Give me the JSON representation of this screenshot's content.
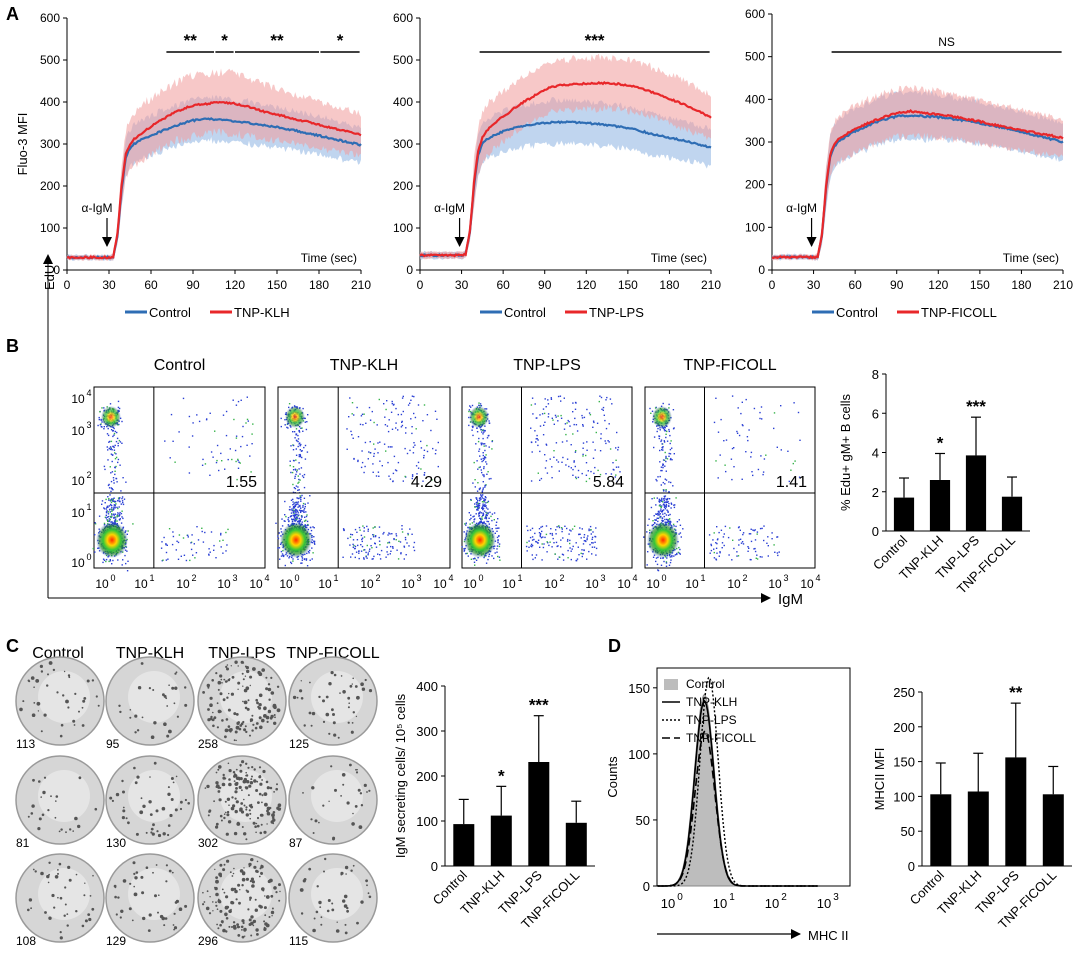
{
  "panel_labels": {
    "A": "A",
    "B": "B",
    "C": "C",
    "D": "D"
  },
  "colors": {
    "control": "#2e6db4",
    "treated": "#e8272a",
    "control_band": "#8db3e2",
    "treated_band": "#f09a9a",
    "bar": "#000000",
    "hist_fill": "#bdbdbd"
  },
  "chart_data": [
    {
      "id": "A1",
      "type": "line",
      "ylabel": "Fluo-3 MFI",
      "xlabel": "Time (sec)",
      "x_ticks": [
        "0",
        "30",
        "60",
        "90",
        "120",
        "150",
        "180",
        "210"
      ],
      "y_ticks": [
        "0",
        "100",
        "200",
        "300",
        "400",
        "500",
        "600"
      ],
      "xlim": [
        0,
        210
      ],
      "ylim": [
        0,
        600
      ],
      "arrow_label": "α-IgM",
      "arrow_x": 30,
      "series": [
        {
          "name": "Control",
          "t": [
            0,
            20,
            30,
            33,
            36,
            39,
            42,
            45,
            48,
            52,
            56,
            60,
            70,
            80,
            90,
            100,
            110,
            120,
            130,
            140,
            150,
            160,
            170,
            180,
            190,
            200,
            210
          ],
          "y": [
            30,
            30,
            30,
            30,
            80,
            190,
            268,
            290,
            300,
            308,
            315,
            320,
            334,
            346,
            356,
            360,
            358,
            354,
            350,
            345,
            340,
            334,
            327,
            320,
            312,
            305,
            298
          ],
          "sd": [
            6,
            6,
            6,
            8,
            20,
            40,
            45,
            45,
            45,
            46,
            47,
            48,
            48,
            48,
            50,
            52,
            52,
            51,
            50,
            48,
            48,
            47,
            46,
            45,
            44,
            43,
            42
          ]
        },
        {
          "name": "TNP-KLH",
          "t": [
            0,
            20,
            30,
            33,
            36,
            39,
            42,
            45,
            48,
            52,
            56,
            60,
            70,
            80,
            90,
            100,
            110,
            120,
            130,
            140,
            150,
            160,
            170,
            180,
            190,
            200,
            210
          ],
          "y": [
            30,
            30,
            30,
            30,
            85,
            200,
            275,
            300,
            312,
            322,
            332,
            342,
            362,
            380,
            392,
            396,
            400,
            396,
            388,
            378,
            370,
            362,
            354,
            346,
            338,
            330,
            322
          ],
          "sd": [
            6,
            6,
            6,
            8,
            20,
            50,
            55,
            60,
            62,
            64,
            66,
            68,
            68,
            70,
            72,
            72,
            72,
            70,
            68,
            65,
            62,
            60,
            58,
            56,
            54,
            52,
            50
          ]
        }
      ],
      "significance": [
        {
          "label": "**",
          "x0": 71,
          "x1": 105
        },
        {
          "label": "*",
          "x0": 106,
          "x1": 119
        },
        {
          "label": "**",
          "x0": 120,
          "x1": 180
        },
        {
          "label": "*",
          "x0": 181,
          "x1": 209
        }
      ]
    },
    {
      "id": "A2",
      "type": "line",
      "xlabel": "Time (sec)",
      "x_ticks": [
        "0",
        "30",
        "60",
        "90",
        "120",
        "150",
        "180",
        "210"
      ],
      "y_ticks": [
        "0",
        "100",
        "200",
        "300",
        "400",
        "500",
        "600"
      ],
      "xlim": [
        0,
        210
      ],
      "ylim": [
        0,
        600
      ],
      "arrow_label": "α-IgM",
      "arrow_x": 30,
      "series": [
        {
          "name": "Control",
          "t": [
            0,
            20,
            30,
            33,
            36,
            39,
            42,
            45,
            48,
            52,
            56,
            60,
            70,
            80,
            90,
            100,
            110,
            120,
            130,
            140,
            150,
            160,
            170,
            180,
            190,
            200,
            210
          ],
          "y": [
            35,
            35,
            35,
            38,
            90,
            200,
            275,
            300,
            310,
            318,
            324,
            330,
            340,
            346,
            350,
            352,
            352,
            350,
            347,
            343,
            338,
            330,
            322,
            315,
            308,
            300,
            292
          ],
          "sd": [
            8,
            8,
            8,
            8,
            20,
            45,
            48,
            48,
            48,
            48,
            48,
            50,
            50,
            50,
            52,
            52,
            52,
            52,
            50,
            50,
            50,
            50,
            48,
            48,
            46,
            45,
            45
          ]
        },
        {
          "name": "TNP-LPS",
          "t": [
            0,
            20,
            30,
            33,
            36,
            39,
            42,
            45,
            48,
            52,
            56,
            60,
            70,
            80,
            90,
            100,
            110,
            120,
            130,
            140,
            150,
            160,
            170,
            180,
            190,
            200,
            210
          ],
          "y": [
            35,
            35,
            35,
            38,
            92,
            210,
            285,
            315,
            330,
            345,
            356,
            365,
            390,
            410,
            430,
            440,
            442,
            444,
            445,
            444,
            440,
            432,
            420,
            408,
            395,
            380,
            362
          ],
          "sd": [
            8,
            8,
            8,
            8,
            22,
            55,
            58,
            60,
            60,
            60,
            60,
            60,
            60,
            60,
            60,
            60,
            60,
            60,
            60,
            60,
            60,
            60,
            60,
            58,
            56,
            55,
            55
          ]
        }
      ],
      "significance": [
        {
          "label": "***",
          "x0": 43,
          "x1": 209
        }
      ]
    },
    {
      "id": "A3",
      "type": "line",
      "xlabel": "Time (sec)",
      "x_ticks": [
        "0",
        "30",
        "60",
        "90",
        "120",
        "150",
        "180",
        "210"
      ],
      "y_ticks": [
        "0",
        "100",
        "200",
        "300",
        "400",
        "500",
        "600"
      ],
      "xlim": [
        0,
        210
      ],
      "ylim": [
        0,
        600
      ],
      "arrow_label": "α-IgM",
      "arrow_x": 30,
      "series": [
        {
          "name": "Control",
          "t": [
            0,
            20,
            30,
            33,
            36,
            39,
            42,
            45,
            48,
            52,
            56,
            60,
            70,
            80,
            90,
            100,
            110,
            120,
            130,
            140,
            150,
            160,
            170,
            180,
            190,
            200,
            210
          ],
          "y": [
            30,
            30,
            30,
            30,
            80,
            190,
            265,
            290,
            300,
            310,
            318,
            325,
            340,
            352,
            360,
            362,
            360,
            358,
            354,
            350,
            344,
            338,
            332,
            324,
            316,
            308,
            300
          ],
          "sd": [
            6,
            6,
            6,
            8,
            22,
            45,
            50,
            50,
            52,
            52,
            52,
            54,
            54,
            54,
            54,
            54,
            54,
            52,
            52,
            50,
            50,
            48,
            48,
            46,
            46,
            45,
            45
          ]
        },
        {
          "name": "TNP-FICOLL",
          "t": [
            0,
            20,
            30,
            33,
            36,
            39,
            42,
            45,
            48,
            52,
            56,
            60,
            70,
            80,
            90,
            100,
            110,
            120,
            130,
            140,
            150,
            160,
            170,
            180,
            190,
            200,
            210
          ],
          "y": [
            30,
            30,
            30,
            30,
            82,
            195,
            270,
            294,
            306,
            316,
            323,
            330,
            345,
            358,
            368,
            372,
            368,
            364,
            360,
            354,
            348,
            340,
            334,
            328,
            322,
            316,
            310
          ],
          "sd": [
            6,
            6,
            6,
            8,
            22,
            45,
            50,
            52,
            54,
            54,
            54,
            55,
            55,
            55,
            55,
            55,
            55,
            54,
            52,
            52,
            50,
            50,
            48,
            48,
            46,
            46,
            45
          ]
        }
      ],
      "significance": [
        {
          "label": "NS",
          "x0": 43,
          "x1": 209
        }
      ]
    },
    {
      "id": "B-bar",
      "type": "bar",
      "ylabel": "% Edu+ gM+ B cells",
      "categories": [
        "Control",
        "TNP-KLH",
        "TNP-LPS",
        "TNP-FICOLL"
      ],
      "values": [
        1.7,
        2.6,
        3.85,
        1.75
      ],
      "errors": [
        1.0,
        1.35,
        1.95,
        1.0
      ],
      "ylim": [
        0,
        8
      ],
      "y_ticks": [
        "0",
        "2",
        "4",
        "6",
        "8"
      ],
      "significance": [
        "",
        "*",
        "***",
        ""
      ]
    },
    {
      "id": "C-bar",
      "type": "bar",
      "ylabel": "IgM secreting cells/ 10⁵ cells",
      "categories": [
        "Control",
        "TNP-KLH",
        "TNP-LPS",
        "TNP-FICOLL"
      ],
      "values": [
        93,
        112,
        231,
        96
      ],
      "errors": [
        55,
        65,
        103,
        48
      ],
      "ylim": [
        0,
        400
      ],
      "y_ticks": [
        "0",
        "100",
        "200",
        "300",
        "400"
      ],
      "significance": [
        "",
        "*",
        "***",
        ""
      ]
    },
    {
      "id": "D-hist",
      "type": "area",
      "xlabel": "MHC II",
      "ylabel": "Counts",
      "y_ticks": [
        "0",
        "50",
        "100",
        "150"
      ],
      "ylim": [
        0,
        165
      ],
      "legend": [
        "Control",
        "TNP-KLH",
        "TNP-LPS",
        "TNP-FICOLL"
      ],
      "series": [
        {
          "name": "Control",
          "mu": 0.7,
          "sigma": 0.19,
          "peak": 145
        },
        {
          "name": "TNP-KLH",
          "mu": 0.7,
          "sigma": 0.185,
          "peak": 140
        },
        {
          "name": "TNP-LPS",
          "mu": 0.79,
          "sigma": 0.175,
          "peak": 158
        },
        {
          "name": "TNP-FICOLL",
          "mu": 0.71,
          "sigma": 0.19,
          "peak": 117
        }
      ]
    },
    {
      "id": "D-bar",
      "type": "bar",
      "ylabel": "MHCII MFI",
      "categories": [
        "Control",
        "TNP-KLH",
        "TNP-LPS",
        "TNP-FICOLL"
      ],
      "values": [
        103,
        107,
        156,
        103
      ],
      "errors": [
        45,
        55,
        78,
        40
      ],
      "ylim": [
        0,
        250
      ],
      "y_ticks": [
        "0",
        "50",
        "100",
        "150",
        "200",
        "250"
      ],
      "significance": [
        "",
        "",
        "**",
        ""
      ]
    }
  ],
  "panelB": {
    "titles": [
      "Control",
      "TNP-KLH",
      "TNP-LPS",
      "TNP-FICOLL"
    ],
    "quadrant_values": [
      "1.55",
      "4.29",
      "5.84",
      "1.41"
    ],
    "y_axis_label": "EdU",
    "x_axis_label": "IgM"
  },
  "panelC": {
    "column_titles": [
      "Control",
      "TNP-KLH",
      "TNP-LPS",
      "TNP-FICOLL"
    ],
    "counts": [
      [
        "113",
        "95",
        "258",
        "125"
      ],
      [
        "81",
        "130",
        "302",
        "87"
      ],
      [
        "108",
        "129",
        "296",
        "115"
      ]
    ]
  },
  "panelA_legends": [
    [
      "Control",
      "TNP-KLH"
    ],
    [
      "Control",
      "TNP-LPS"
    ],
    [
      "Control",
      "TNP-FICOLL"
    ]
  ]
}
